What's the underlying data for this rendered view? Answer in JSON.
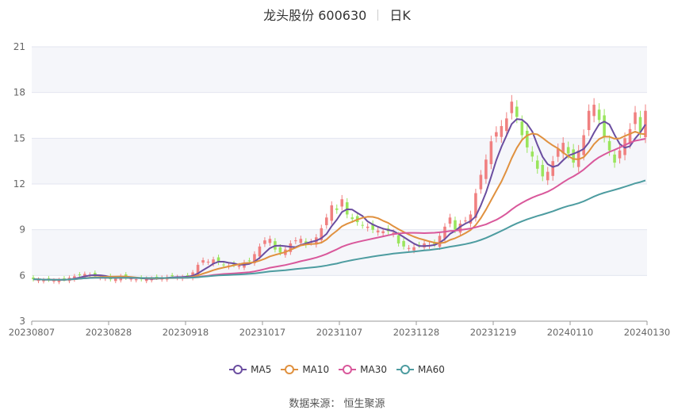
{
  "title": {
    "stock": "龙头股份 600630",
    "period": "日K"
  },
  "source": "数据来源：  恒生聚源",
  "colors": {
    "up": "#f08080",
    "down": "#9ae55c",
    "grid": "#e3e6f0",
    "band": "#f5f6fa",
    "axis": "#999999"
  },
  "chart_data": {
    "type": "candlestick",
    "ylim": [
      3,
      21
    ],
    "yticks": [
      3,
      6,
      9,
      12,
      15,
      18,
      21
    ],
    "xticks": [
      "20230807",
      "20230828",
      "20230918",
      "20231017",
      "20231107",
      "20231128",
      "20231219",
      "20240110",
      "20240130"
    ],
    "close": [
      5.75,
      5.73,
      5.7,
      5.72,
      5.68,
      5.7,
      5.75,
      5.85,
      5.95,
      6.05,
      6.1,
      6.05,
      5.95,
      5.9,
      5.85,
      5.75,
      5.8,
      5.95,
      5.85,
      5.8,
      5.75,
      5.75,
      5.8,
      5.8,
      5.85,
      5.85,
      5.9,
      5.95,
      5.9,
      5.9,
      5.95,
      6.2,
      6.7,
      7.0,
      6.9,
      7.05,
      6.85,
      6.7,
      6.65,
      6.7,
      6.65,
      6.85,
      6.95,
      7.4,
      7.9,
      8.3,
      8.4,
      7.7,
      7.5,
      7.7,
      8.1,
      8.3,
      8.4,
      8.0,
      8.2,
      8.5,
      9.1,
      9.8,
      10.6,
      10.3,
      11.0,
      10.0,
      9.7,
      9.5,
      9.3,
      9.2,
      9.0,
      8.95,
      8.9,
      8.9,
      8.8,
      8.1,
      7.9,
      7.8,
      7.85,
      8.0,
      8.1,
      8.0,
      8.05,
      8.6,
      9.2,
      9.8,
      9.0,
      9.4,
      9.6,
      10.0,
      11.4,
      12.6,
      13.6,
      14.8,
      15.4,
      15.8,
      16.3,
      17.4,
      16.4,
      15.2,
      14.4,
      13.8,
      13.0,
      12.5,
      12.8,
      13.5,
      14.3,
      14.7,
      14.0,
      13.4,
      14.2,
      15.2,
      16.8,
      17.2,
      16.2,
      15.1,
      14.2,
      13.4,
      14.2,
      15.0,
      15.6,
      16.7,
      15.4,
      16.8
    ]
  },
  "legend": [
    {
      "name": "MA5",
      "color": "#6b4ea0"
    },
    {
      "name": "MA10",
      "color": "#e0913f"
    },
    {
      "name": "MA30",
      "color": "#d9589b"
    },
    {
      "name": "MA60",
      "color": "#4d9ca0"
    }
  ]
}
